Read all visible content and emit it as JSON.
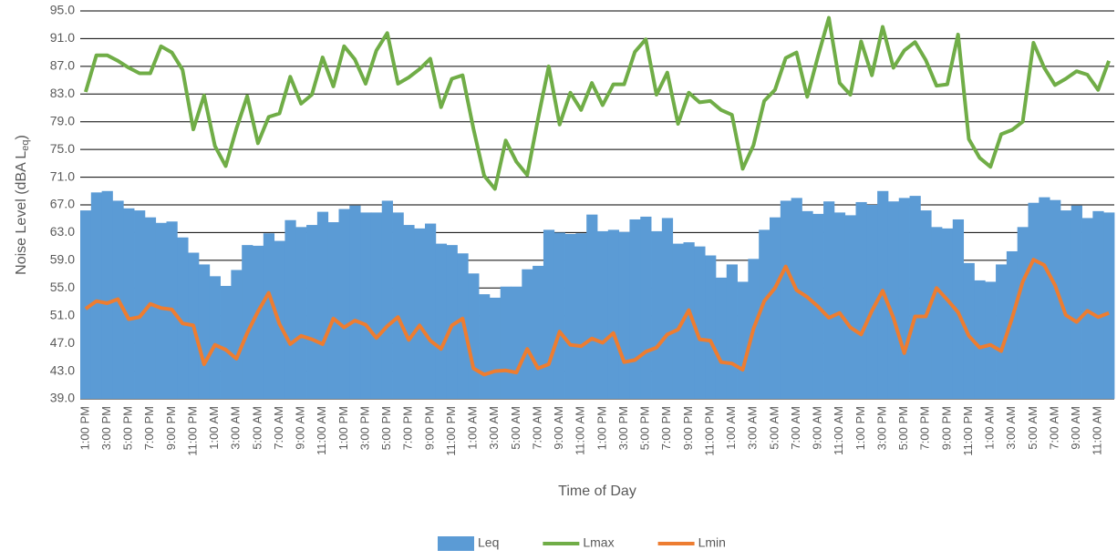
{
  "chart_data": {
    "type": "bar-line",
    "y_label": [
      "Noise Level (dBA L",
      "eq",
      ")"
    ],
    "x_label": "Time of Day",
    "categories": [
      "1:00 PM",
      null,
      "3:00 PM",
      null,
      "5:00 PM",
      null,
      "7:00 PM",
      null,
      "9:00 PM",
      null,
      "11:00 PM",
      null,
      "1:00 AM",
      null,
      "3:00 AM",
      null,
      "5:00 AM",
      null,
      "7:00 AM",
      null,
      "9:00 AM",
      null,
      "11:00 AM",
      null,
      "1:00 PM",
      null,
      "3:00 PM",
      null,
      "5:00 PM",
      null,
      "7:00 PM",
      null,
      "9:00 PM",
      null,
      "11:00 PM",
      null,
      "1:00 AM",
      null,
      "3:00 AM",
      null,
      "5:00 AM",
      null,
      "7:00 AM",
      null,
      "9:00 AM",
      null,
      "11:00 AM",
      null,
      "1:00 PM",
      null,
      "3:00 PM",
      null,
      "5:00 PM",
      null,
      "7:00 PM",
      null,
      "9:00 PM",
      null,
      "11:00 PM",
      null,
      "1:00 AM",
      null,
      "3:00 AM",
      null,
      "5:00 AM",
      null,
      "7:00 AM",
      null,
      "9:00 AM",
      null,
      "11:00 AM",
      null,
      "1:00 PM",
      null,
      "3:00 PM",
      null,
      "5:00 PM",
      null,
      "7:00 PM",
      null,
      "9:00 PM",
      null,
      "11:00 PM",
      null,
      "1:00 AM",
      null,
      "3:00 AM",
      null,
      "5:00 AM",
      null,
      "7:00 AM",
      null,
      "9:00 AM",
      null,
      "11:00 AM",
      null
    ],
    "series": [
      {
        "name": "Leq",
        "kind": "bar",
        "color": "#5b9bd5",
        "values": [
          66.2,
          68.8,
          69,
          67.6,
          66.5,
          66.2,
          65.2,
          64.4,
          64.6,
          62.3,
          60.1,
          58.4,
          56.7,
          55.3,
          57.6,
          61.2,
          61.1,
          62.9,
          61.8,
          64.8,
          63.8,
          64.1,
          66,
          64.5,
          66.4,
          66.9,
          65.9,
          65.9,
          67.6,
          65.9,
          64.1,
          63.6,
          64.3,
          61.4,
          61.2,
          60,
          57.1,
          54.1,
          53.6,
          55.2,
          55.2,
          57.7,
          58.2,
          63.4,
          63,
          62.8,
          62.9,
          65.6,
          63.2,
          63.4,
          63.1,
          64.9,
          65.3,
          63.2,
          65.1,
          61.4,
          61.6,
          61,
          59.7,
          56.5,
          58.4,
          55.9,
          59.2,
          63.4,
          65.2,
          67.6,
          68,
          66.1,
          65.7,
          67.5,
          65.9,
          65.5,
          67.4,
          67,
          69,
          67.5,
          68,
          68.3,
          66.2,
          63.8,
          63.6,
          64.9,
          58.6,
          56.1,
          55.9,
          58.4,
          60.3,
          63.8,
          67.3,
          68.1,
          67.7,
          66.2,
          66.9,
          65.1,
          66.1,
          65.9
        ]
      },
      {
        "name": "Lmax",
        "kind": "line",
        "color": "#70ad47",
        "values": [
          83.3,
          88.6,
          88.6,
          87.8,
          86.8,
          86,
          86,
          89.9,
          89,
          86.5,
          77.9,
          82.8,
          75.5,
          72.6,
          78,
          82.7,
          75.9,
          79.7,
          80.2,
          85.5,
          81.6,
          82.9,
          88.3,
          84.1,
          89.9,
          88,
          84.5,
          89.3,
          91.8,
          84.5,
          85.4,
          86.6,
          88.1,
          81.1,
          85.2,
          85.7,
          78,
          71.2,
          69.3,
          76.3,
          73.2,
          71.3,
          79.4,
          87,
          78.6,
          83.2,
          80.7,
          84.6,
          81.4,
          84.4,
          84.4,
          89.1,
          90.9,
          82.9,
          86.1,
          78.7,
          83.2,
          81.8,
          82,
          80.7,
          80,
          72.2,
          75.6,
          82,
          83.6,
          88.2,
          89,
          82.6,
          88.5,
          94,
          84.6,
          82.9,
          90.6,
          85.7,
          92.7,
          86.8,
          89.3,
          90.5,
          87.9,
          84.2,
          84.4,
          91.6,
          76.5,
          73.8,
          72.5,
          77.2,
          77.8,
          79,
          90.4,
          86.8,
          84.3,
          85.2,
          86.3,
          85.8,
          83.6,
          87.8
        ]
      },
      {
        "name": "Lmin",
        "kind": "line",
        "color": "#ed7d31",
        "values": [
          52,
          53.1,
          52.8,
          53.4,
          50.5,
          50.8,
          52.7,
          52.1,
          51.9,
          49.9,
          49.6,
          44,
          46.8,
          46.1,
          44.8,
          48.5,
          51.6,
          54.3,
          49.8,
          46.9,
          48.1,
          47.6,
          46.9,
          50.6,
          49.3,
          50.3,
          49.7,
          47.8,
          49.5,
          50.8,
          47.5,
          49.6,
          47.4,
          46.2,
          49.6,
          50.6,
          43.4,
          42.5,
          43,
          43.1,
          42.8,
          46.2,
          43.4,
          44,
          48.7,
          46.8,
          46.6,
          47.7,
          47.1,
          48.5,
          44.3,
          44.6,
          45.8,
          46.4,
          48.3,
          49,
          51.8,
          47.6,
          47.4,
          44.3,
          44.1,
          43.2,
          49.1,
          53.1,
          55,
          58.1,
          54.7,
          53.7,
          52.3,
          50.7,
          51.4,
          49.3,
          48.3,
          51.7,
          54.6,
          50.7,
          45.6,
          50.9,
          50.9,
          55,
          53.3,
          51.5,
          48.1,
          46.4,
          46.8,
          45.9,
          50.6,
          55.9,
          59.1,
          58.3,
          55.4,
          51.1,
          50.1,
          51.7,
          50.8,
          51.4
        ]
      }
    ],
    "ylim": [
      39,
      95
    ],
    "yticks": [
      {
        "value": 39,
        "label": "39.0"
      },
      {
        "value": 43,
        "label": "43.0"
      },
      {
        "value": 47,
        "label": "47.0"
      },
      {
        "value": 51,
        "label": "51.0"
      },
      {
        "value": 55,
        "label": "55.0"
      },
      {
        "value": 59,
        "label": "59.0"
      },
      {
        "value": 63,
        "label": "63.0"
      },
      {
        "value": 67,
        "label": "67.0"
      },
      {
        "value": 71,
        "label": "71.0"
      },
      {
        "value": 75,
        "label": "75.0"
      },
      {
        "value": 79,
        "label": "79.0"
      },
      {
        "value": 83,
        "label": "83.0"
      },
      {
        "value": 87,
        "label": "87.0"
      },
      {
        "value": 91,
        "label": "91.0"
      },
      {
        "value": 95,
        "label": "95.0"
      }
    ],
    "grid": true,
    "legend": "bottom"
  }
}
